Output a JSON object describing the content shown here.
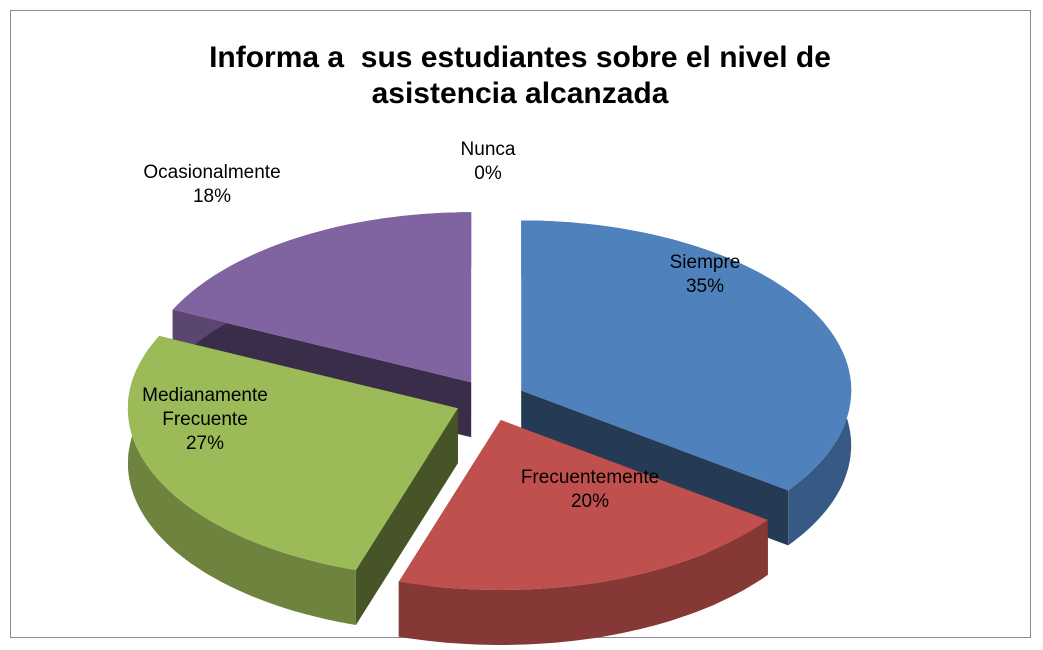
{
  "chart_data": {
    "type": "pie3d",
    "title": "Informa a  sus estudiantes sobre el nivel de asistencia alcanzada",
    "categories": [
      "Siempre",
      "Frecuentemente",
      "Medianamente Frecuente",
      "Ocasionalmente",
      "Nunca"
    ],
    "values": [
      35,
      20,
      27,
      18,
      0
    ],
    "value_labels": [
      "35%",
      "20%",
      "27%",
      "18%",
      "0%"
    ],
    "colors": [
      "#4f81bd",
      "#c0504d",
      "#9bbb59",
      "#8064a2",
      "#4bacc6"
    ]
  }
}
